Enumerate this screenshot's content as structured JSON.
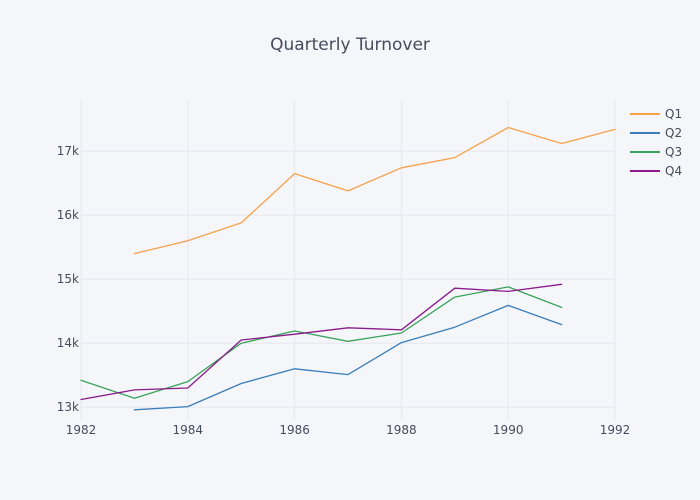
{
  "chart_data": {
    "type": "line",
    "title": "Quarterly  Turnover",
    "xlabel": "",
    "ylabel": "",
    "xlim": [
      1982,
      1992
    ],
    "ylim": [
      12800,
      17800
    ],
    "x_ticks": [
      1982,
      1984,
      1986,
      1988,
      1990,
      1992
    ],
    "x_tick_labels": [
      "1982",
      "1984",
      "1986",
      "1988",
      "1990",
      "1992"
    ],
    "y_ticks": [
      13000,
      14000,
      15000,
      16000,
      17000
    ],
    "y_tick_labels": [
      "13k",
      "14k",
      "15k",
      "16k",
      "17k"
    ],
    "grid": true,
    "legend_position": "top-right",
    "series": [
      {
        "name": "Q1",
        "color": "#f7a14a",
        "x": [
          1983,
          1984,
          1985,
          1986,
          1987,
          1988,
          1989,
          1990,
          1991,
          1992
        ],
        "y": [
          15400,
          15600,
          15880,
          16650,
          16380,
          16740,
          16900,
          17370,
          17120,
          17340
        ]
      },
      {
        "name": "Q2",
        "color": "#3a7db8",
        "x": [
          1983,
          1984,
          1985,
          1986,
          1987,
          1988,
          1989,
          1990,
          1991
        ],
        "y": [
          12960,
          13010,
          13370,
          13600,
          13510,
          14010,
          14250,
          14590,
          14290
        ]
      },
      {
        "name": "Q3",
        "color": "#3aa35a",
        "x": [
          1982,
          1983,
          1984,
          1985,
          1986,
          1987,
          1988,
          1989,
          1990,
          1991
        ],
        "y": [
          13420,
          13140,
          13400,
          14000,
          14190,
          14030,
          14160,
          14720,
          14880,
          14560
        ]
      },
      {
        "name": "Q4",
        "color": "#8b1a8b",
        "x": [
          1982,
          1983,
          1984,
          1985,
          1986,
          1987,
          1988,
          1989,
          1990,
          1991
        ],
        "y": [
          13120,
          13270,
          13300,
          14050,
          14140,
          14240,
          14210,
          14860,
          14810,
          14920
        ]
      }
    ]
  }
}
